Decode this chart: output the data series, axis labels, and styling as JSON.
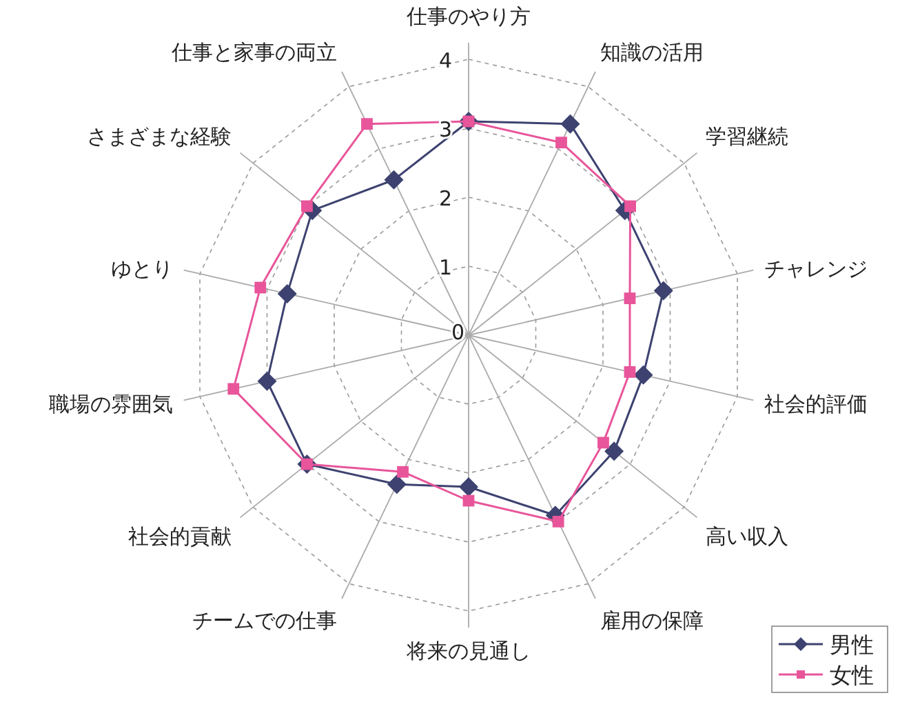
{
  "chart_data": {
    "type": "radar",
    "categories": [
      "仕事のやり方",
      "知識の活用",
      "学習継続",
      "チャレンジ",
      "社会的評価",
      "高い収入",
      "雇用の保障",
      "将来の見通し",
      "チームでの仕事",
      "社会的貢献",
      "職場の雰囲気",
      "ゆとり",
      "さまざまな経験",
      "仕事と家事の両立"
    ],
    "series": [
      {
        "name": "男性",
        "color": "#3d4270",
        "marker": "diamond",
        "values": [
          3.1,
          3.4,
          2.9,
          2.9,
          2.6,
          2.7,
          2.9,
          2.2,
          2.4,
          3.0,
          3.0,
          2.7,
          2.9,
          2.5
        ]
      },
      {
        "name": "女性",
        "color": "#e8559a",
        "marker": "square",
        "values": [
          3.1,
          3.1,
          3.0,
          2.4,
          2.4,
          2.5,
          3.0,
          2.4,
          2.2,
          3.0,
          3.5,
          3.1,
          3.0,
          3.4
        ]
      }
    ],
    "ylim": [
      0,
      4
    ],
    "yticks": [
      0,
      1,
      2,
      3,
      4
    ],
    "grid": true,
    "legend": "bottom right",
    "line_style": "solid"
  }
}
